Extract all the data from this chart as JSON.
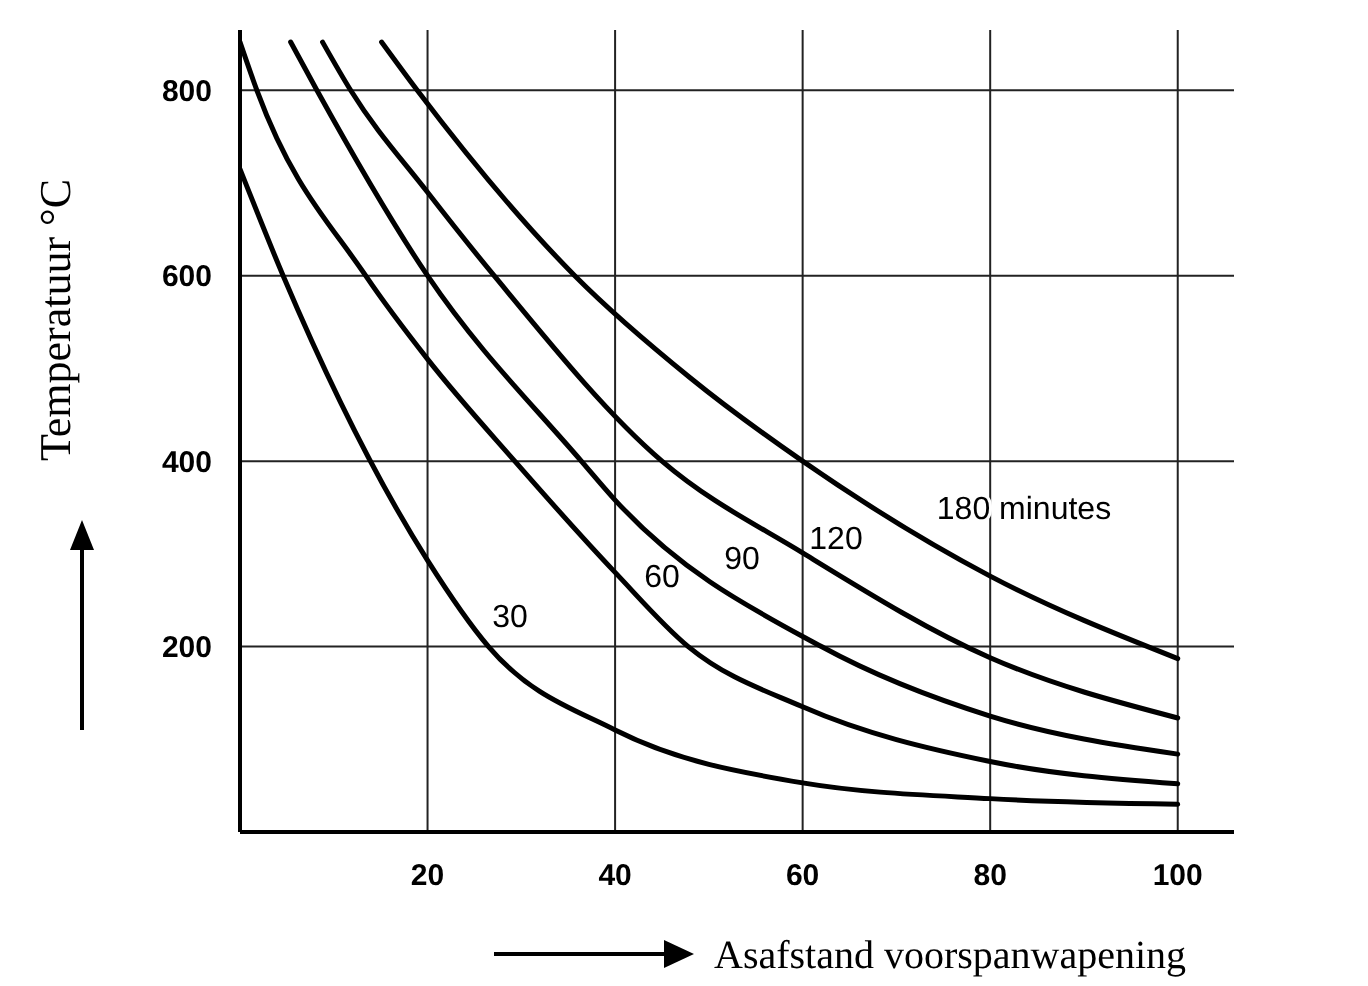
{
  "chart_data": {
    "type": "line",
    "xlabel": "Asafstand voorspanwapening",
    "ylabel": "Temperatuur °C",
    "xlim": [
      0,
      106
    ],
    "ylim": [
      0,
      865
    ],
    "xticks": [
      20,
      40,
      60,
      80,
      100
    ],
    "yticks": [
      200,
      400,
      600,
      800
    ],
    "grid": true,
    "marker": "none",
    "line_style": "solid",
    "series": [
      {
        "color": "#000000",
        "x": [
          0,
          4.6,
          20,
          26.5,
          40,
          60,
          80,
          100
        ],
        "values": [
          715,
          600,
          293,
          200,
          110,
          53,
          36,
          30
        ]
      },
      {
        "color": "#000000",
        "x": [
          0,
          1.8,
          13.4,
          20,
          29.3,
          40,
          47.8,
          60,
          80,
          100
        ],
        "values": [
          852,
          800,
          600,
          510,
          400,
          280,
          200,
          135,
          76,
          52
        ]
      },
      {
        "color": "#000000",
        "x": [
          5.4,
          8.2,
          20,
          36.4,
          40,
          62,
          80,
          100
        ],
        "values": [
          852,
          800,
          600,
          400,
          358,
          200,
          125,
          84
        ]
      },
      {
        "color": "#000000",
        "x": [
          8.8,
          11.8,
          20,
          27.1,
          45,
          60,
          80,
          100
        ],
        "values": [
          852,
          800,
          690,
          600,
          400,
          301,
          188,
          123
        ]
      },
      {
        "color": "#000000",
        "x": [
          15.1,
          18.9,
          35.7,
          48,
          60,
          80,
          100
        ],
        "values": [
          852,
          800,
          600,
          490,
          400,
          276,
          187
        ]
      }
    ],
    "annotations": [
      "30",
      "60",
      "90",
      "120",
      "180 minutes"
    ]
  }
}
